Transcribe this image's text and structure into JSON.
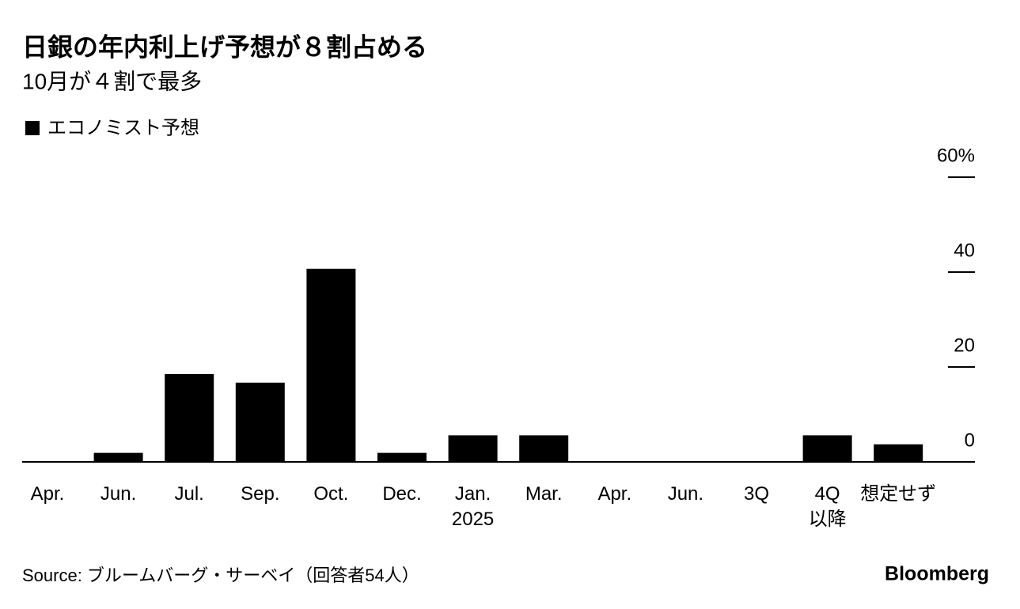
{
  "chart_data": {
    "type": "bar",
    "title": "日銀の年内利上げ予想が８割占める",
    "subtitle": "10月が４割で最多",
    "source": "Source: ブルームバーグ・サーベイ（回答者54人）",
    "logo": "Bloomberg",
    "categories": [
      "Apr.",
      "Jun.",
      "Jul.",
      "Sep.",
      "Oct.",
      "Dec.",
      "Jan.\n2025",
      "Mar.",
      "Apr.",
      "Jun.",
      "3Q",
      "4Q\n以降",
      "想定せず"
    ],
    "series": [
      {
        "name": "エコノミスト予想",
        "color": "#000000",
        "values": [
          0,
          1.9,
          18.5,
          16.7,
          40.7,
          1.9,
          5.6,
          5.6,
          0,
          0,
          0,
          5.6,
          3.7
        ]
      }
    ],
    "ylim": [
      0,
      60
    ],
    "yticks": [
      0,
      20,
      40,
      {
        "value": 60,
        "label": "60%"
      }
    ],
    "axis_side": "right"
  }
}
